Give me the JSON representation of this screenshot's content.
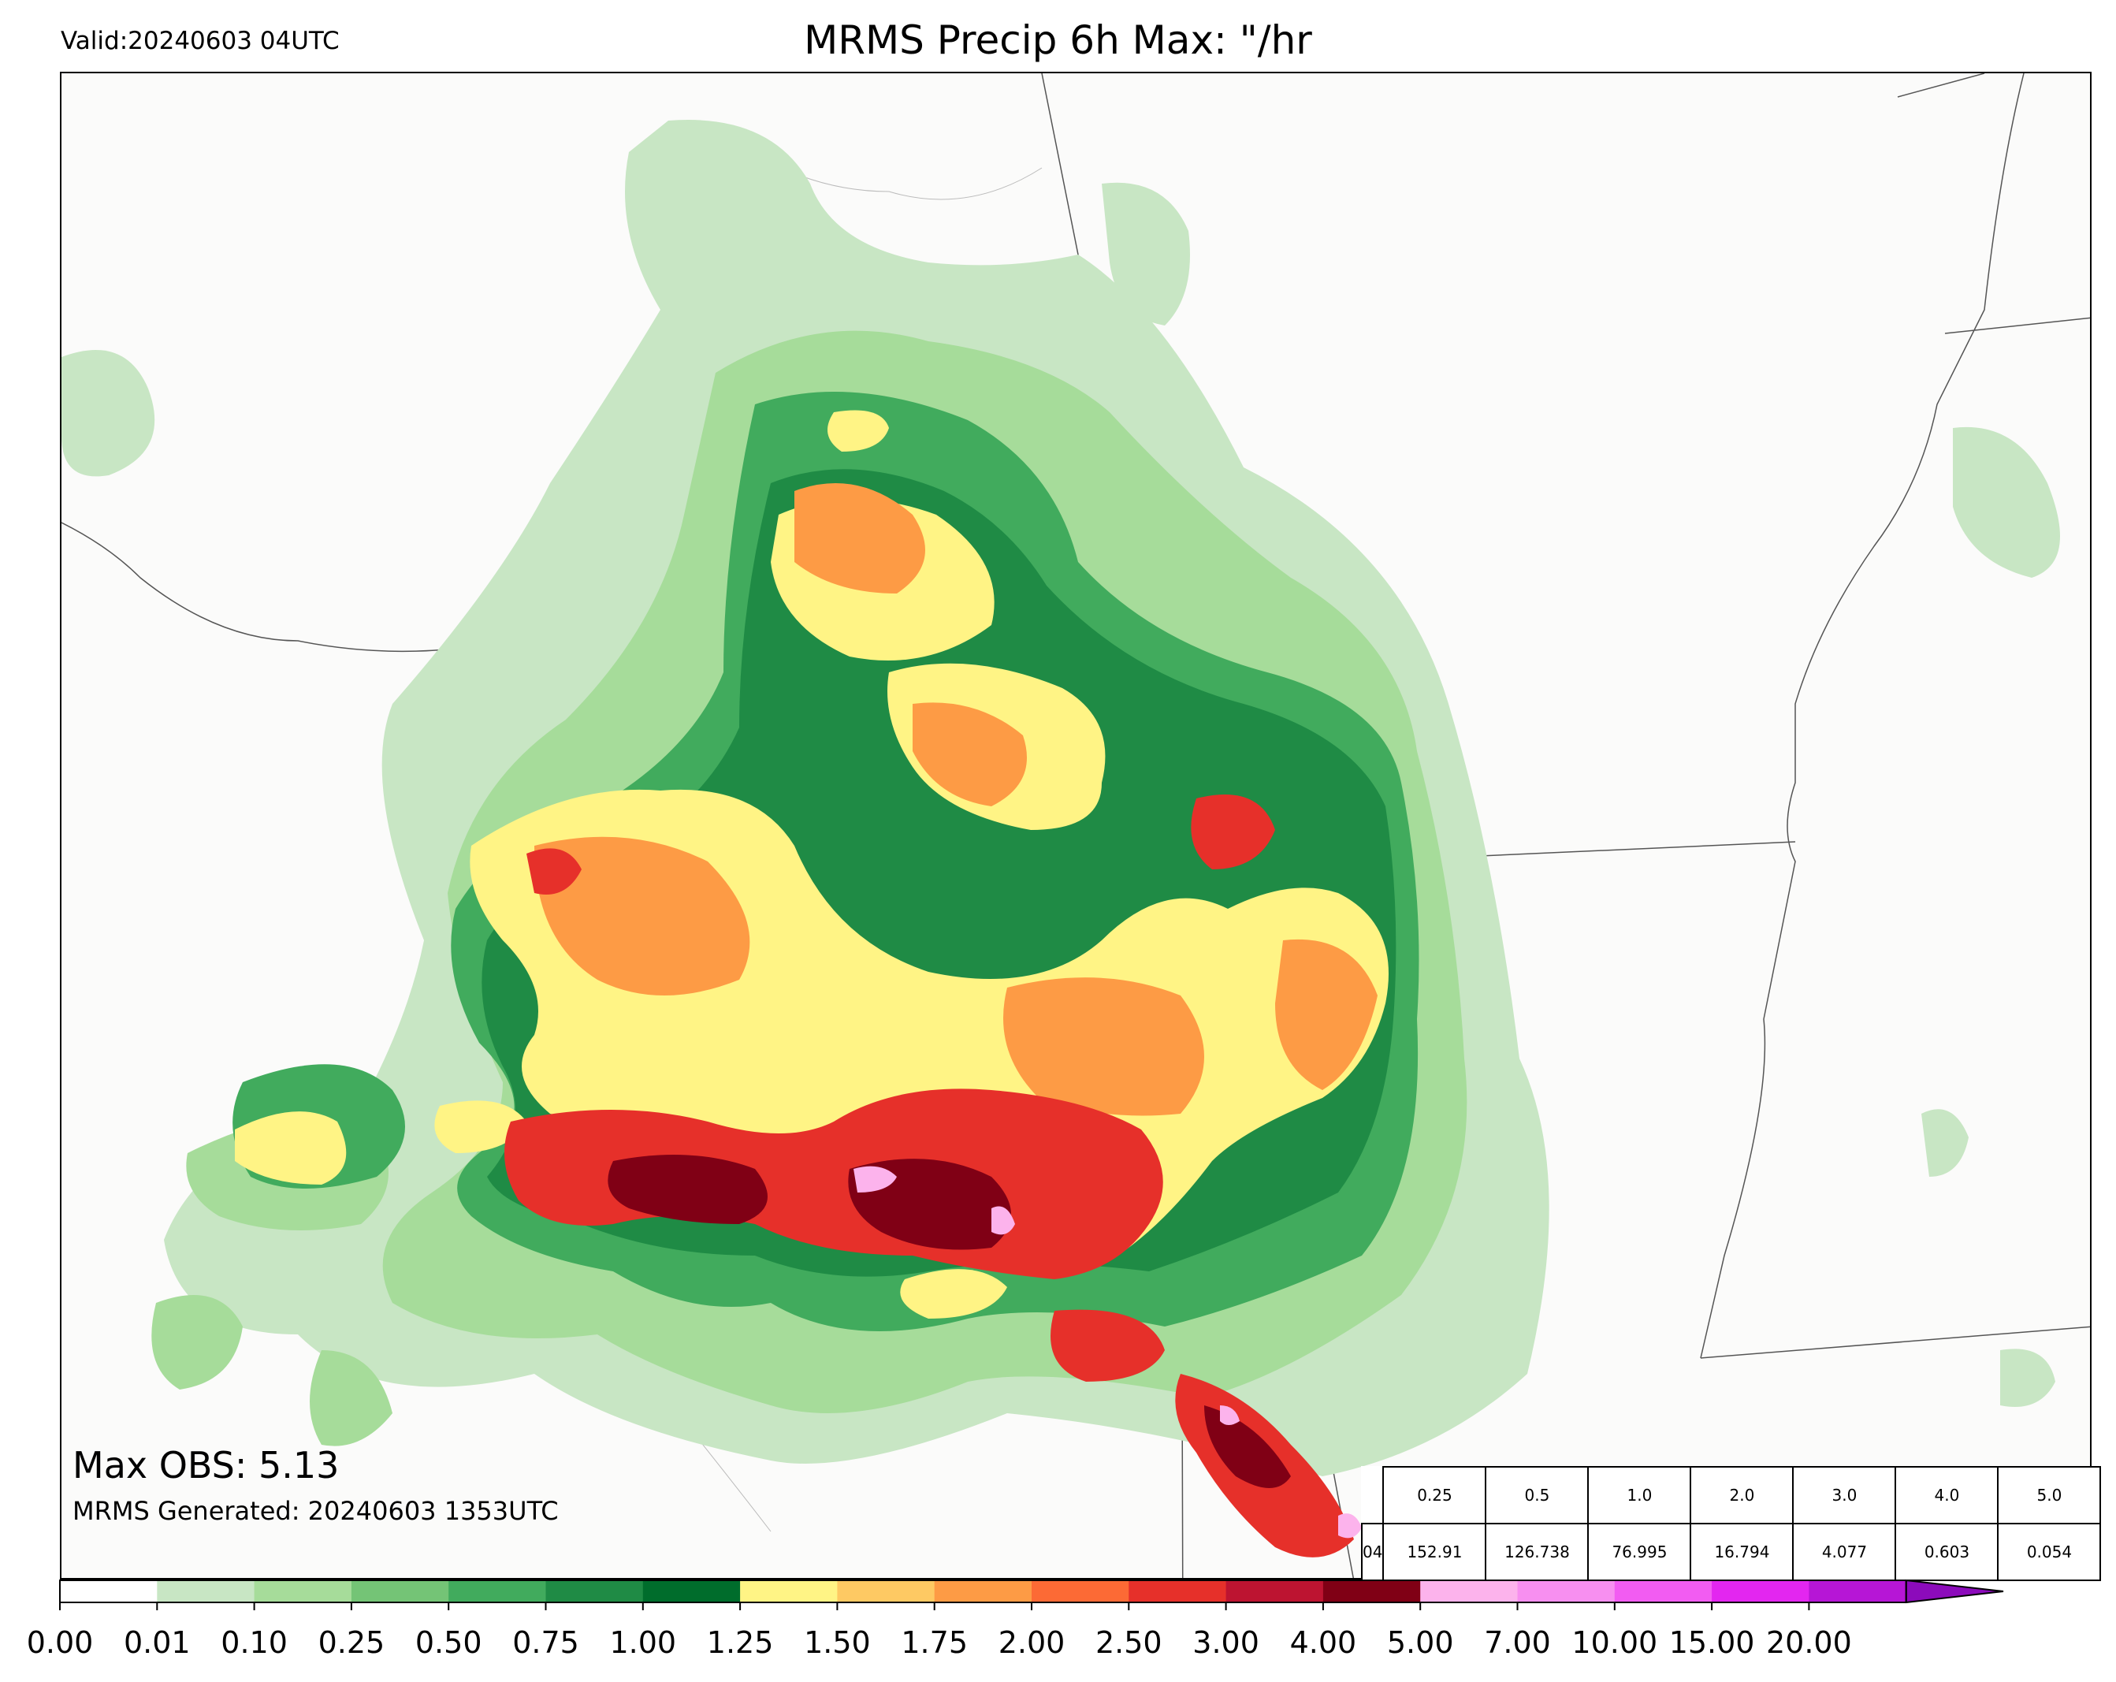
{
  "valid_label": "Valid:20240603 04UTC",
  "title": "MRMS Precip 6h Max: \"/hr",
  "max_obs": "Max OBS: 5.13",
  "generated": "MRMS Generated: 20240603 1353UTC",
  "stats_table": {
    "cut_label": "04",
    "thresholds": [
      "0.25",
      "0.5",
      "1.0",
      "2.0",
      "3.0",
      "4.0",
      "5.0"
    ],
    "values": [
      "152.91",
      "126.738",
      "76.995",
      "16.794",
      "4.077",
      "0.603",
      "0.054"
    ]
  },
  "colorbar": {
    "ticks": [
      "0.00",
      "0.01",
      "0.10",
      "0.25",
      "0.50",
      "0.75",
      "1.00",
      "1.25",
      "1.50",
      "1.75",
      "2.00",
      "2.50",
      "3.00",
      "4.00",
      "5.00",
      "7.00",
      "10.00",
      "15.00",
      "20.00"
    ],
    "colors": [
      "#ffffff",
      "#c8e6c4",
      "#a6dc9a",
      "#74c476",
      "#41ab5d",
      "#1f8b45",
      "#006d2c",
      "#fff485",
      "#fec963",
      "#fd9b45",
      "#fc6a35",
      "#e6302a",
      "#bd1431",
      "#800015",
      "#fcb3ec",
      "#f78ff0",
      "#f25cf2",
      "#e326f0",
      "#b616d6",
      "#8c0bbb"
    ]
  }
}
